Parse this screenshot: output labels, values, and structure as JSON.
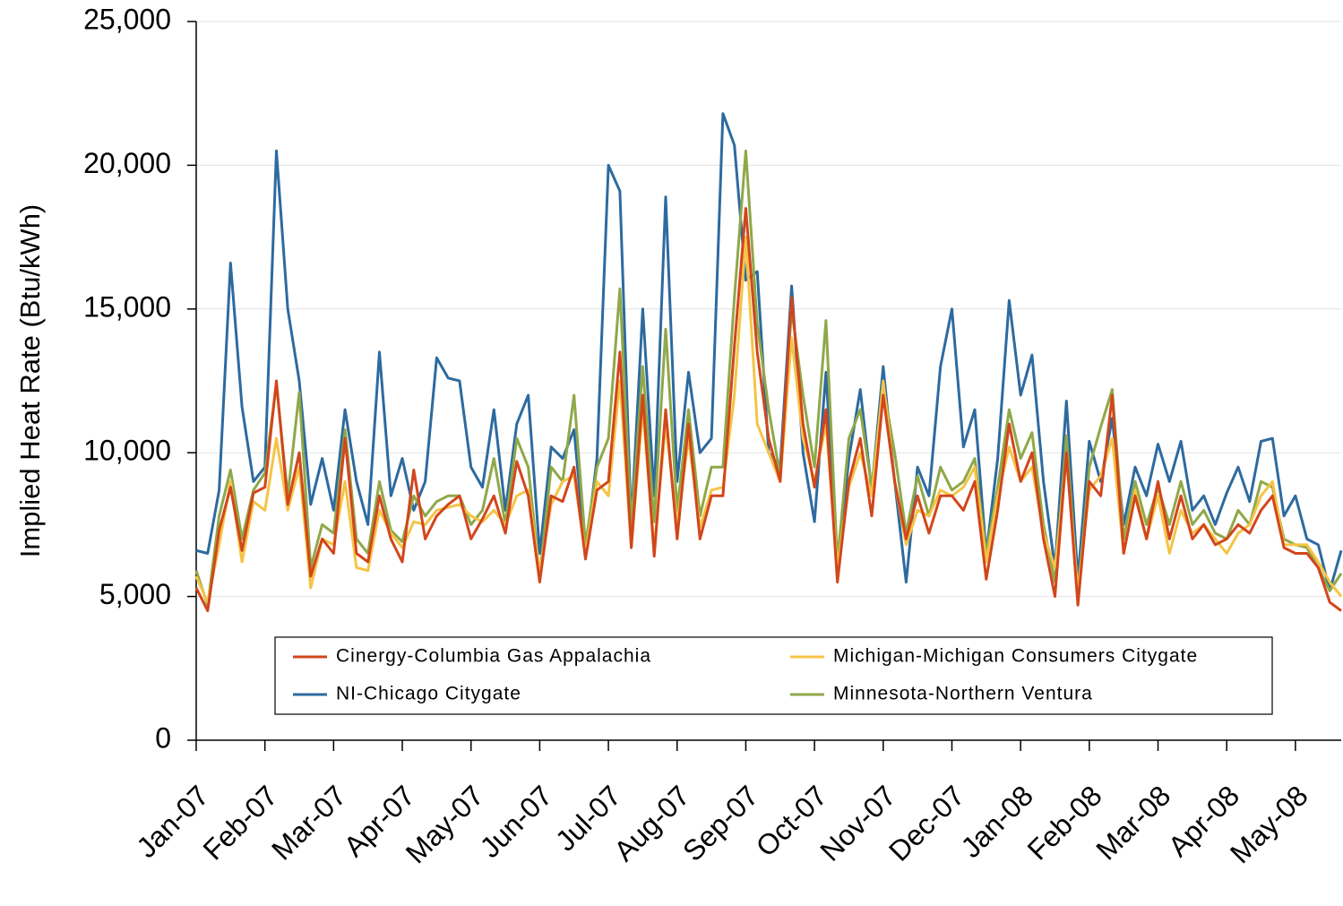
{
  "chart_data": {
    "type": "line",
    "y_label": "Implied Heat Rate (Btu/kWh)",
    "categories": [
      "Jan-07",
      null,
      null,
      null,
      null,
      null,
      "Feb-07",
      null,
      null,
      null,
      null,
      null,
      "Mar-07",
      null,
      null,
      null,
      null,
      null,
      "Apr-07",
      null,
      null,
      null,
      null,
      null,
      "May-07",
      null,
      null,
      null,
      null,
      null,
      "Jun-07",
      null,
      null,
      null,
      null,
      null,
      "Jul-07",
      null,
      null,
      null,
      null,
      null,
      "Aug-07",
      null,
      null,
      null,
      null,
      null,
      "Sep-07",
      null,
      null,
      null,
      null,
      null,
      "Oct-07",
      null,
      null,
      null,
      null,
      null,
      "Nov-07",
      null,
      null,
      null,
      null,
      null,
      "Dec-07",
      null,
      null,
      null,
      null,
      null,
      "Jan-08",
      null,
      null,
      null,
      null,
      null,
      "Feb-08",
      null,
      null,
      null,
      null,
      null,
      "Mar-08",
      null,
      null,
      null,
      null,
      null,
      "Apr-08",
      null,
      null,
      null,
      null,
      null,
      "May-08",
      null,
      null,
      null,
      null
    ],
    "series": [
      {
        "name": "Cinergy-Columbia Gas Appalachia",
        "color": "#d2461c",
        "values": [
          5300,
          4500,
          7300,
          8800,
          6600,
          8600,
          8800,
          12500,
          8200,
          10000,
          5700,
          7000,
          6500,
          10500,
          6500,
          6200,
          8500,
          7000,
          6200,
          9400,
          7000,
          7800,
          8200,
          8500,
          7000,
          7700,
          8500,
          7200,
          9700,
          8500,
          5500,
          8500,
          8300,
          9500,
          6300,
          8700,
          9000,
          13500,
          6700,
          12000,
          6400,
          11500,
          7000,
          11000,
          7000,
          8500,
          8500,
          13700,
          18500,
          13500,
          10500,
          9000,
          15400,
          11000,
          8800,
          11500,
          5500,
          9000,
          10500,
          7800,
          12000,
          9000,
          7000,
          8500,
          7200,
          8500,
          8500,
          8000,
          9000,
          5600,
          8000,
          11000,
          9000,
          10000,
          7000,
          5000,
          10000,
          4700,
          9000,
          8500,
          12000,
          6500,
          8500,
          7000,
          9000,
          7000,
          8500,
          7000,
          7500,
          6800,
          7000,
          7500,
          7200,
          8000,
          8500,
          6700,
          6500,
          6500,
          6000,
          4800,
          4500
        ]
      },
      {
        "name": "Michigan-Michigan Consumers Citygate",
        "color": "#f5c445",
        "values": [
          5700,
          4800,
          6800,
          9000,
          6200,
          8300,
          8000,
          10500,
          8000,
          9500,
          5300,
          7000,
          6800,
          9000,
          6000,
          5900,
          8000,
          7200,
          6700,
          7600,
          7500,
          8000,
          8100,
          8200,
          7800,
          7600,
          8000,
          7500,
          8500,
          8700,
          5800,
          8200,
          9000,
          9200,
          6500,
          9000,
          8500,
          12500,
          6700,
          11500,
          6700,
          11000,
          7500,
          10500,
          7400,
          8700,
          8800,
          12000,
          17500,
          11000,
          10000,
          9000,
          14000,
          10500,
          9000,
          11000,
          6000,
          8800,
          10000,
          8500,
          12500,
          9000,
          6800,
          8000,
          7800,
          8700,
          8500,
          8800,
          9500,
          6200,
          8500,
          10200,
          9000,
          9500,
          7200,
          6000,
          9800,
          5200,
          8700,
          9200,
          10500,
          6500,
          8700,
          7000,
          8500,
          6500,
          8000,
          7200,
          7500,
          7000,
          6500,
          7200,
          7500,
          8500,
          9000,
          6800,
          6800,
          6800,
          6200,
          5500,
          5000
        ]
      },
      {
        "name": "NI-Chicago Citygate",
        "color": "#2d6a9f",
        "values": [
          6600,
          6500,
          8700,
          16600,
          11600,
          9000,
          9500,
          20500,
          15000,
          12500,
          8200,
          9800,
          8000,
          11500,
          9000,
          7500,
          13500,
          8500,
          9800,
          8000,
          9000,
          13300,
          12600,
          12500,
          9500,
          8800,
          11500,
          8000,
          11000,
          12000,
          6500,
          10200,
          9800,
          10800,
          6500,
          9800,
          20000,
          19100,
          7500,
          15000,
          8500,
          18900,
          9000,
          12800,
          10000,
          10500,
          21800,
          20700,
          16000,
          16300,
          10000,
          9500,
          15800,
          10000,
          7600,
          12800,
          6000,
          9800,
          12200,
          8700,
          13000,
          9000,
          5500,
          9500,
          8500,
          13000,
          15000,
          10200,
          11500,
          6500,
          9800,
          15300,
          12000,
          13400,
          9000,
          6000,
          11800,
          5600,
          10400,
          9000,
          11200,
          7500,
          9500,
          8500,
          10300,
          9000,
          10400,
          8000,
          8500,
          7500,
          8600,
          9500,
          8300,
          10400,
          10500,
          7800,
          8500,
          7000,
          6800,
          5200,
          6600
        ]
      },
      {
        "name": "Minnesota-Northern Ventura",
        "color": "#8fa849",
        "values": [
          5900,
          4700,
          7800,
          9400,
          7000,
          8700,
          9300,
          12400,
          8500,
          12100,
          6000,
          7500,
          7200,
          10800,
          7000,
          6500,
          9000,
          7300,
          6900,
          8500,
          7800,
          8300,
          8500,
          8500,
          7500,
          8000,
          9800,
          7500,
          10500,
          9500,
          5700,
          9500,
          9000,
          12000,
          6800,
          9500,
          10500,
          15700,
          7500,
          13000,
          7600,
          14300,
          8000,
          11500,
          7800,
          9500,
          9500,
          15400,
          20500,
          14500,
          11500,
          9200,
          15000,
          12000,
          9500,
          14600,
          6200,
          10500,
          11500,
          8800,
          12300,
          10000,
          7200,
          9200,
          7800,
          9500,
          8700,
          9000,
          9800,
          6500,
          8800,
          11500,
          9800,
          10700,
          7500,
          5500,
          10600,
          5000,
          9500,
          10900,
          12200,
          7000,
          9000,
          7500,
          8800,
          7500,
          9000,
          7500,
          8000,
          7200,
          7000,
          8000,
          7500,
          9000,
          8800,
          7000,
          6800,
          6700,
          6000,
          5200,
          5800
        ]
      }
    ],
    "ylim": [
      0,
      25000
    ],
    "yticks": [
      0,
      {
        "value": 5000,
        "label": "5,000"
      },
      {
        "value": 10000,
        "label": "10,000"
      },
      {
        "value": 15000,
        "label": "15,000"
      },
      {
        "value": 20000,
        "label": "20,000"
      },
      {
        "value": 25000,
        "label": "25,000"
      }
    ],
    "grid": true
  }
}
